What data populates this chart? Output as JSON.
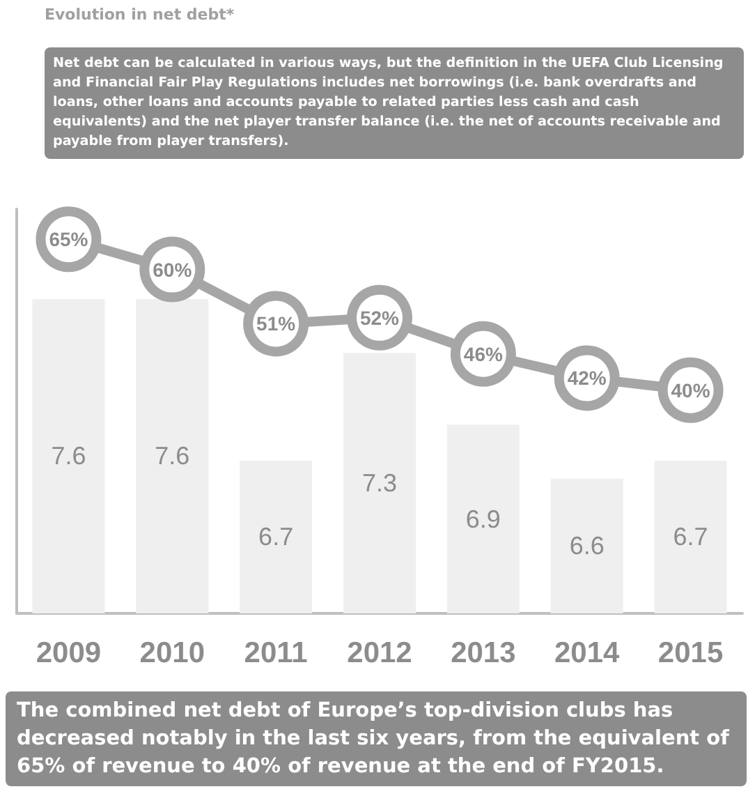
{
  "chart_data": {
    "type": "bar",
    "title": "Evolution in net debt*",
    "categories": [
      "2009",
      "2010",
      "2011",
      "2012",
      "2013",
      "2014",
      "2015"
    ],
    "series": [
      {
        "color": "#efefef",
        "values": [
          7.6,
          7.6,
          6.7,
          7.3,
          6.9,
          6.6,
          6.7
        ]
      },
      {
        "type": "line",
        "axis": "y2",
        "color": "#a6a6a6",
        "values": [
          65,
          60,
          51,
          52,
          46,
          42,
          40
        ],
        "value_labels": [
          "65%",
          "60%",
          "51%",
          "52%",
          "46%",
          "42%",
          "40%"
        ]
      }
    ],
    "ylim": [
      5.85,
      8.1
    ],
    "y2lim": [
      3,
      70
    ],
    "tick_labels": "x",
    "data_labels": true,
    "marker": "circle",
    "line_style": "solid",
    "annotations": [
      "Net debt can be calculated in various ways, but the definition in the UEFA Club Licensing and Financial Fair Play Regulations includes net borrowings (i.e. bank overdrafts and loans, other loans and accounts payable to related parties less cash and cash equivalents) and the net player transfer balance (i.e. the net of accounts receivable and payable from player transfers).",
      "The combined net debt of Europe’s top-division clubs has decreased notably in the last six years, from the equivalent of 65% of revenue to 40% of revenue at the end of FY2015."
    ]
  }
}
